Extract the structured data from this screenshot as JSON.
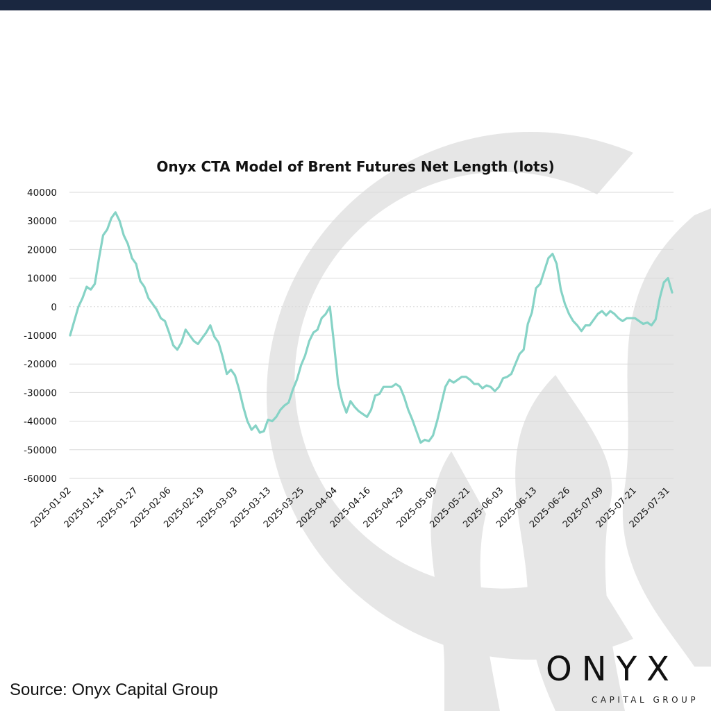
{
  "chart_data": {
    "type": "line",
    "title": "Onyx CTA Model of Brent Futures Net Length (lots)",
    "xlabel": "",
    "ylabel": "",
    "ylim": [
      -60000,
      40000
    ],
    "yticks": [
      40000,
      30000,
      20000,
      10000,
      0,
      -10000,
      -20000,
      -30000,
      -40000,
      -50000,
      -60000
    ],
    "ytick_labels": [
      "40000",
      "30000",
      "20000",
      "10000",
      "0",
      "-10000",
      "-20000",
      "-30000",
      "-40000",
      "-50000",
      "-60000"
    ],
    "xtick_labels": [
      "2025-01-02",
      "2025-01-14",
      "2025-01-27",
      "2025-02-06",
      "2025-02-19",
      "2025-03-03",
      "2025-03-13",
      "2025-03-25",
      "2025-04-04",
      "2025-04-16",
      "2025-04-29",
      "2025-05-09",
      "2025-05-21",
      "2025-06-03",
      "2025-06-13",
      "2025-06-26",
      "2025-07-09",
      "2025-07-21",
      "2025-07-31"
    ],
    "grid": "horizontal",
    "line_color": "#86d3c6",
    "series": [
      {
        "values": [
          -10000,
          -5000,
          0,
          3000,
          7000,
          6000,
          8000,
          17000,
          25000,
          27000,
          31000,
          33000,
          30000,
          25000,
          22000,
          17000,
          15000,
          9000,
          7000,
          3000,
          1000,
          -1000,
          -4000,
          -5000,
          -9000,
          -13500,
          -15000,
          -12500,
          -8000,
          -10000,
          -12000,
          -13000,
          -11000,
          -9000,
          -6500,
          -10500,
          -12500,
          -17500,
          -23500,
          -22000,
          -24000,
          -29000,
          -35000,
          -40000,
          -43000,
          -41500,
          -44000,
          -43500,
          -39500,
          -40000,
          -38500,
          -36000,
          -34500,
          -33500,
          -29000,
          -25500,
          -20500,
          -17000,
          -12000,
          -9000,
          -8000,
          -4000,
          -2500,
          0,
          -13000,
          -27000,
          -33000,
          -37000,
          -33000,
          -35000,
          -36500,
          -37500,
          -38500,
          -36000,
          -31000,
          -30500,
          -28000,
          -28000,
          -28000,
          -27000,
          -28000,
          -31500,
          -36000,
          -39500,
          -43500,
          -47500,
          -46500,
          -47000,
          -45000,
          -40000,
          -34000,
          -28000,
          -25500,
          -26500,
          -25500,
          -24500,
          -24500,
          -25500,
          -27000,
          -27000,
          -28500,
          -27500,
          -28000,
          -29500,
          -28000,
          -25000,
          -24500,
          -23500,
          -20000,
          -16500,
          -15000,
          -6000,
          -2000,
          6500,
          8000,
          12500,
          17000,
          18500,
          15000,
          6000,
          1000,
          -2500,
          -5000,
          -6500,
          -8500,
          -6500,
          -6500,
          -4500,
          -2500,
          -1500,
          -3000,
          -1500,
          -2500,
          -4000,
          -5000,
          -4000,
          -4000,
          -4000,
          -5000,
          -6000,
          -5500,
          -6500,
          -4500,
          3000,
          8500,
          10000,
          5000
        ]
      }
    ]
  }
}
